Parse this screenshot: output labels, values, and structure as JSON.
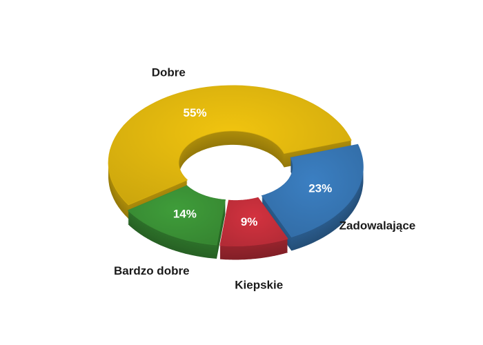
{
  "chart_data": {
    "type": "donut",
    "categories": [
      "Dobre",
      "Zadowalające",
      "Kiepskie",
      "Bardzo dobre"
    ],
    "values": [
      55,
      23,
      9,
      14
    ],
    "value_labels": [
      "55%",
      "23%",
      "9%",
      "14%"
    ],
    "colors": [
      "#f1c40f",
      "#3b7fc2",
      "#d3323f",
      "#3f9d3a"
    ]
  }
}
